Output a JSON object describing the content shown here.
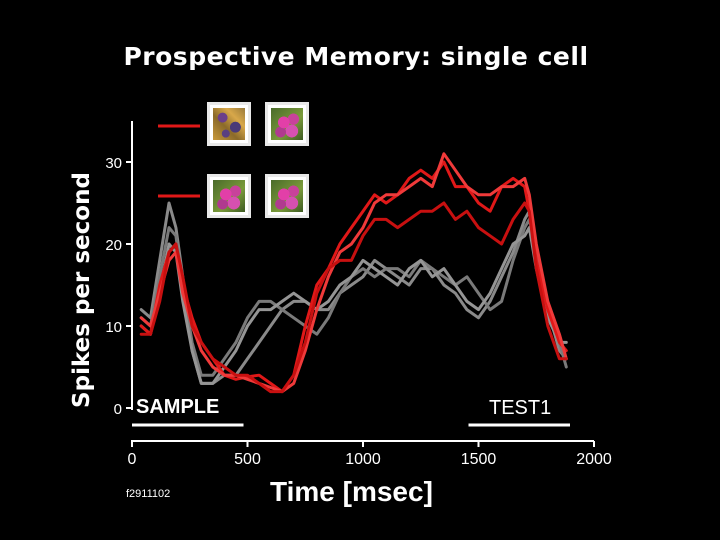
{
  "chart_data": {
    "type": "line",
    "title": "Prospective Memory: single cell",
    "xlabel": "Time [msec]",
    "ylabel": "Spikes per second",
    "xlim": [
      0,
      2000
    ],
    "ylim": [
      0,
      35
    ],
    "xticks": [
      "0",
      "500",
      "1000",
      "1500",
      "2000"
    ],
    "yticks": [
      "0",
      "10",
      "20",
      "30"
    ],
    "xtick_values": [
      0,
      500,
      1000,
      1500,
      2000
    ],
    "ytick_values": [
      0,
      10,
      20,
      30
    ],
    "grid": false,
    "annotations": {
      "sample": {
        "label": "SAMPLE",
        "range": [
          0,
          500
        ]
      },
      "test": {
        "label": "TEST1",
        "range": [
          1500,
          2000
        ]
      },
      "cell_id": "f2911102"
    },
    "legend_colors": [
      "#e01818",
      "#e01818"
    ],
    "series": [
      {
        "color": "#e01818",
        "x": [
          40,
          80,
          120,
          160,
          190,
          220,
          260,
          300,
          350,
          400,
          450,
          500,
          550,
          600,
          650,
          700,
          750,
          800,
          850,
          900,
          950,
          1000,
          1050,
          1100,
          1150,
          1200,
          1250,
          1300,
          1350,
          1400,
          1450,
          1500,
          1550,
          1600,
          1650,
          1700,
          1720,
          1750,
          1800,
          1850,
          1880
        ],
        "y": [
          10,
          9,
          15,
          19,
          20,
          15,
          11,
          8,
          6,
          4,
          3.5,
          3.8,
          4,
          3,
          2,
          4,
          10,
          15,
          17,
          20,
          22,
          24,
          26,
          25,
          26,
          28,
          29,
          28,
          30,
          27,
          27,
          25,
          24,
          27,
          28,
          27,
          24,
          18,
          12,
          8,
          7
        ]
      },
      {
        "color": "#f03a3a",
        "x": [
          40,
          80,
          120,
          160,
          190,
          220,
          260,
          300,
          350,
          400,
          450,
          500,
          550,
          600,
          650,
          700,
          750,
          800,
          850,
          900,
          950,
          1000,
          1050,
          1100,
          1150,
          1200,
          1250,
          1300,
          1350,
          1400,
          1450,
          1500,
          1550,
          1600,
          1650,
          1700,
          1720,
          1750,
          1800,
          1850,
          1880
        ],
        "y": [
          11,
          10,
          14,
          18,
          19,
          14,
          10,
          7,
          5,
          4,
          4,
          3.5,
          3,
          2.5,
          2,
          3,
          7,
          12,
          16,
          19,
          20,
          22,
          25,
          26,
          26,
          27,
          28,
          27,
          31,
          29,
          27,
          26,
          26,
          27,
          27,
          28,
          26,
          20,
          13,
          9,
          6
        ]
      },
      {
        "color": "#c81010",
        "x": [
          40,
          80,
          120,
          160,
          190,
          220,
          260,
          300,
          350,
          400,
          450,
          500,
          550,
          600,
          650,
          700,
          750,
          800,
          850,
          900,
          950,
          1000,
          1050,
          1100,
          1150,
          1200,
          1250,
          1300,
          1350,
          1400,
          1450,
          1500,
          1550,
          1600,
          1650,
          1700,
          1720,
          1750,
          1800,
          1850,
          1880
        ],
        "y": [
          9,
          9,
          13,
          19,
          20,
          16,
          10,
          8,
          6,
          5,
          4,
          4,
          3,
          2,
          2,
          4,
          8,
          14,
          17,
          18,
          18,
          21,
          23,
          23,
          22,
          23,
          24,
          24,
          25,
          23,
          24,
          22,
          21,
          20,
          23,
          25,
          24,
          17,
          10,
          6,
          6
        ]
      },
      {
        "color": "#8a8a8a",
        "x": [
          40,
          80,
          120,
          160,
          190,
          220,
          260,
          300,
          350,
          400,
          450,
          500,
          550,
          600,
          650,
          700,
          750,
          800,
          850,
          900,
          950,
          1000,
          1050,
          1100,
          1150,
          1200,
          1250,
          1300,
          1350,
          1400,
          1450,
          1500,
          1550,
          1600,
          1650,
          1700,
          1720,
          1750,
          1800,
          1850,
          1880
        ],
        "y": [
          12,
          11,
          18,
          25,
          22,
          16,
          7,
          3,
          3,
          4,
          4,
          6,
          8,
          10,
          12,
          13,
          13,
          12,
          12,
          14,
          15,
          16,
          18,
          17,
          16,
          15,
          17,
          17,
          15,
          14,
          12,
          11,
          13,
          16,
          19,
          23,
          24,
          18,
          12,
          7,
          6
        ]
      },
      {
        "color": "#7a7a7a",
        "x": [
          40,
          80,
          120,
          160,
          190,
          220,
          260,
          300,
          350,
          400,
          450,
          500,
          550,
          600,
          650,
          700,
          750,
          800,
          850,
          900,
          950,
          1000,
          1050,
          1100,
          1150,
          1200,
          1250,
          1300,
          1350,
          1400,
          1450,
          1500,
          1550,
          1600,
          1650,
          1700,
          1720,
          1750,
          1800,
          1850,
          1880
        ],
        "y": [
          11,
          10,
          16,
          22,
          21,
          15,
          8,
          4,
          4,
          6,
          8,
          11,
          13,
          13,
          12,
          11,
          10,
          9,
          11,
          14,
          16,
          17,
          16,
          17,
          17,
          16,
          18,
          17,
          16,
          15,
          16,
          14,
          12,
          13,
          18,
          22,
          23,
          19,
          12,
          8,
          5
        ]
      },
      {
        "color": "#959595",
        "x": [
          40,
          80,
          120,
          160,
          190,
          220,
          260,
          300,
          350,
          400,
          450,
          500,
          550,
          600,
          650,
          700,
          750,
          800,
          850,
          900,
          950,
          1000,
          1050,
          1100,
          1150,
          1200,
          1250,
          1300,
          1350,
          1400,
          1450,
          1500,
          1550,
          1600,
          1650,
          1700,
          1720,
          1750,
          1800,
          1850,
          1880
        ],
        "y": [
          10,
          9,
          14,
          20,
          19,
          13,
          7,
          3,
          3,
          5,
          7,
          10,
          12,
          12,
          13,
          14,
          13,
          12,
          13,
          15,
          16,
          18,
          17,
          16,
          15,
          17,
          18,
          16,
          17,
          15,
          13,
          12,
          14,
          17,
          20,
          21,
          22,
          17,
          11,
          8,
          8
        ]
      }
    ]
  }
}
